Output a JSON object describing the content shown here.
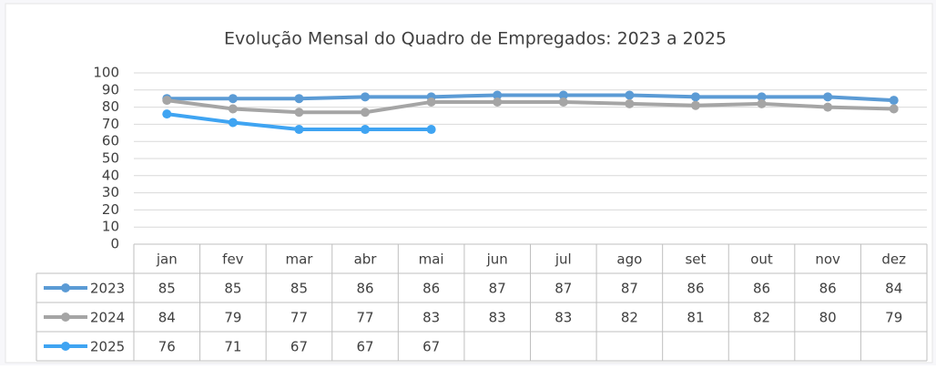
{
  "chart_data": {
    "type": "line",
    "title": "Evolução Mensal do Quadro de Empregados: 2023 a 2025",
    "categories": [
      "jan",
      "fev",
      "mar",
      "abr",
      "mai",
      "jun",
      "jul",
      "ago",
      "set",
      "out",
      "nov",
      "dez"
    ],
    "series": [
      {
        "name": "2023",
        "color": "#5b9bd5",
        "values": [
          85,
          85,
          85,
          86,
          86,
          87,
          87,
          87,
          86,
          86,
          86,
          84
        ]
      },
      {
        "name": "2024",
        "color": "#a5a5a5",
        "values": [
          84,
          79,
          77,
          77,
          83,
          83,
          83,
          82,
          81,
          82,
          80,
          79
        ]
      },
      {
        "name": "2025",
        "color": "#3fa4f2",
        "values": [
          76,
          71,
          67,
          67,
          67,
          null,
          null,
          null,
          null,
          null,
          null,
          null
        ]
      }
    ],
    "ylim": [
      0,
      100
    ],
    "yticks": [
      0,
      10,
      20,
      30,
      40,
      50,
      60,
      70,
      80,
      90,
      100
    ],
    "grid": true
  }
}
